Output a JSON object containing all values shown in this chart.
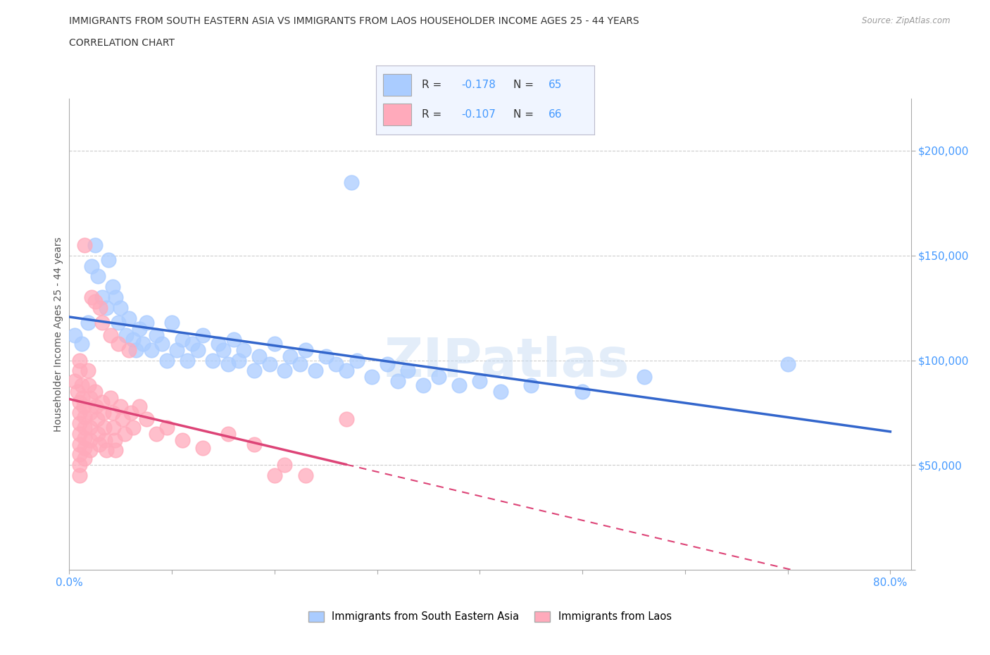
{
  "title_line1": "IMMIGRANTS FROM SOUTH EASTERN ASIA VS IMMIGRANTS FROM LAOS HOUSEHOLDER INCOME AGES 25 - 44 YEARS",
  "title_line2": "CORRELATION CHART",
  "source_text": "Source: ZipAtlas.com",
  "ylabel": "Householder Income Ages 25 - 44 years",
  "xlim": [
    0.0,
    0.82
  ],
  "ylim": [
    0,
    225000
  ],
  "xticks": [
    0.0,
    0.1,
    0.2,
    0.3,
    0.4,
    0.5,
    0.6,
    0.7,
    0.8
  ],
  "xticklabels": [
    "0.0%",
    "",
    "",
    "",
    "",
    "",
    "",
    "",
    "80.0%"
  ],
  "yticks": [
    0,
    50000,
    100000,
    150000,
    200000
  ],
  "yticklabels": [
    "",
    "$50,000",
    "$100,000",
    "$150,000",
    "$200,000"
  ],
  "ytick_color": "#4499ff",
  "gridcolor": "#cccccc",
  "watermark": "ZIPatlas",
  "legend1_label": "Immigrants from South Eastern Asia",
  "legend2_label": "Immigrants from Laos",
  "R1": -0.178,
  "N1": 65,
  "R2": -0.107,
  "N2": 66,
  "blue_color": "#aaccff",
  "pink_color": "#ffaabb",
  "blue_line_color": "#3366cc",
  "pink_line_color": "#dd4477",
  "blue_scatter": [
    [
      0.005,
      112000
    ],
    [
      0.012,
      108000
    ],
    [
      0.018,
      118000
    ],
    [
      0.022,
      145000
    ],
    [
      0.025,
      155000
    ],
    [
      0.028,
      140000
    ],
    [
      0.032,
      130000
    ],
    [
      0.036,
      125000
    ],
    [
      0.038,
      148000
    ],
    [
      0.042,
      135000
    ],
    [
      0.045,
      130000
    ],
    [
      0.048,
      118000
    ],
    [
      0.05,
      125000
    ],
    [
      0.055,
      112000
    ],
    [
      0.058,
      120000
    ],
    [
      0.062,
      110000
    ],
    [
      0.065,
      105000
    ],
    [
      0.068,
      115000
    ],
    [
      0.072,
      108000
    ],
    [
      0.075,
      118000
    ],
    [
      0.08,
      105000
    ],
    [
      0.085,
      112000
    ],
    [
      0.09,
      108000
    ],
    [
      0.095,
      100000
    ],
    [
      0.1,
      118000
    ],
    [
      0.105,
      105000
    ],
    [
      0.11,
      110000
    ],
    [
      0.115,
      100000
    ],
    [
      0.12,
      108000
    ],
    [
      0.125,
      105000
    ],
    [
      0.13,
      112000
    ],
    [
      0.14,
      100000
    ],
    [
      0.145,
      108000
    ],
    [
      0.15,
      105000
    ],
    [
      0.155,
      98000
    ],
    [
      0.16,
      110000
    ],
    [
      0.165,
      100000
    ],
    [
      0.17,
      105000
    ],
    [
      0.18,
      95000
    ],
    [
      0.185,
      102000
    ],
    [
      0.195,
      98000
    ],
    [
      0.2,
      108000
    ],
    [
      0.21,
      95000
    ],
    [
      0.215,
      102000
    ],
    [
      0.225,
      98000
    ],
    [
      0.23,
      105000
    ],
    [
      0.24,
      95000
    ],
    [
      0.25,
      102000
    ],
    [
      0.26,
      98000
    ],
    [
      0.27,
      95000
    ],
    [
      0.28,
      100000
    ],
    [
      0.295,
      92000
    ],
    [
      0.31,
      98000
    ],
    [
      0.32,
      90000
    ],
    [
      0.33,
      95000
    ],
    [
      0.345,
      88000
    ],
    [
      0.36,
      92000
    ],
    [
      0.38,
      88000
    ],
    [
      0.4,
      90000
    ],
    [
      0.42,
      85000
    ],
    [
      0.45,
      88000
    ],
    [
      0.5,
      85000
    ],
    [
      0.56,
      92000
    ],
    [
      0.7,
      98000
    ],
    [
      0.275,
      185000
    ]
  ],
  "pink_scatter": [
    [
      0.005,
      90000
    ],
    [
      0.008,
      85000
    ],
    [
      0.01,
      95000
    ],
    [
      0.01,
      100000
    ],
    [
      0.01,
      80000
    ],
    [
      0.01,
      75000
    ],
    [
      0.01,
      70000
    ],
    [
      0.01,
      65000
    ],
    [
      0.01,
      60000
    ],
    [
      0.01,
      55000
    ],
    [
      0.01,
      50000
    ],
    [
      0.01,
      45000
    ],
    [
      0.012,
      88000
    ],
    [
      0.013,
      82000
    ],
    [
      0.014,
      78000
    ],
    [
      0.015,
      155000
    ],
    [
      0.015,
      73000
    ],
    [
      0.015,
      68000
    ],
    [
      0.015,
      63000
    ],
    [
      0.015,
      58000
    ],
    [
      0.015,
      53000
    ],
    [
      0.018,
      95000
    ],
    [
      0.019,
      88000
    ],
    [
      0.02,
      82000
    ],
    [
      0.02,
      75000
    ],
    [
      0.02,
      68000
    ],
    [
      0.02,
      62000
    ],
    [
      0.02,
      57000
    ],
    [
      0.022,
      130000
    ],
    [
      0.025,
      128000
    ],
    [
      0.025,
      85000
    ],
    [
      0.026,
      78000
    ],
    [
      0.027,
      72000
    ],
    [
      0.028,
      65000
    ],
    [
      0.029,
      60000
    ],
    [
      0.03,
      125000
    ],
    [
      0.032,
      118000
    ],
    [
      0.032,
      80000
    ],
    [
      0.033,
      75000
    ],
    [
      0.034,
      68000
    ],
    [
      0.035,
      62000
    ],
    [
      0.036,
      57000
    ],
    [
      0.04,
      112000
    ],
    [
      0.04,
      82000
    ],
    [
      0.042,
      75000
    ],
    [
      0.043,
      68000
    ],
    [
      0.044,
      62000
    ],
    [
      0.045,
      57000
    ],
    [
      0.048,
      108000
    ],
    [
      0.05,
      78000
    ],
    [
      0.052,
      72000
    ],
    [
      0.054,
      65000
    ],
    [
      0.058,
      105000
    ],
    [
      0.06,
      75000
    ],
    [
      0.062,
      68000
    ],
    [
      0.068,
      78000
    ],
    [
      0.075,
      72000
    ],
    [
      0.085,
      65000
    ],
    [
      0.095,
      68000
    ],
    [
      0.11,
      62000
    ],
    [
      0.13,
      58000
    ],
    [
      0.155,
      65000
    ],
    [
      0.18,
      60000
    ],
    [
      0.2,
      45000
    ],
    [
      0.21,
      50000
    ],
    [
      0.23,
      45000
    ],
    [
      0.27,
      72000
    ]
  ]
}
